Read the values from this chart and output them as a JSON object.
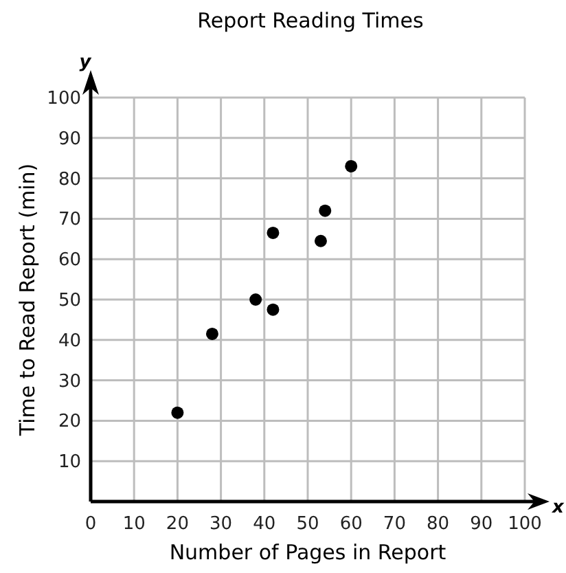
{
  "chart_data": {
    "type": "scatter",
    "title": "Report Reading Times",
    "xlabel": "Number of Pages in Report",
    "ylabel": "Time to Read Report (min)",
    "annotations": [
      "x",
      "y"
    ],
    "series": [
      {
        "color": "#000000",
        "x": [
          20,
          28,
          38,
          42,
          42,
          53,
          54,
          60
        ],
        "values": [
          22,
          41.5,
          50,
          47.5,
          66.5,
          64.5,
          72,
          83
        ]
      }
    ],
    "xlim": [
      0,
      100
    ],
    "ylim": [
      0,
      100
    ],
    "xticks": [
      0,
      10,
      20,
      30,
      40,
      50,
      60,
      70,
      80,
      90,
      100
    ],
    "yticks": [
      {
        "value": 0,
        "label": null
      },
      10,
      20,
      30,
      40,
      50,
      60,
      70,
      80,
      90,
      100
    ],
    "grid": true,
    "marker": "circle"
  }
}
